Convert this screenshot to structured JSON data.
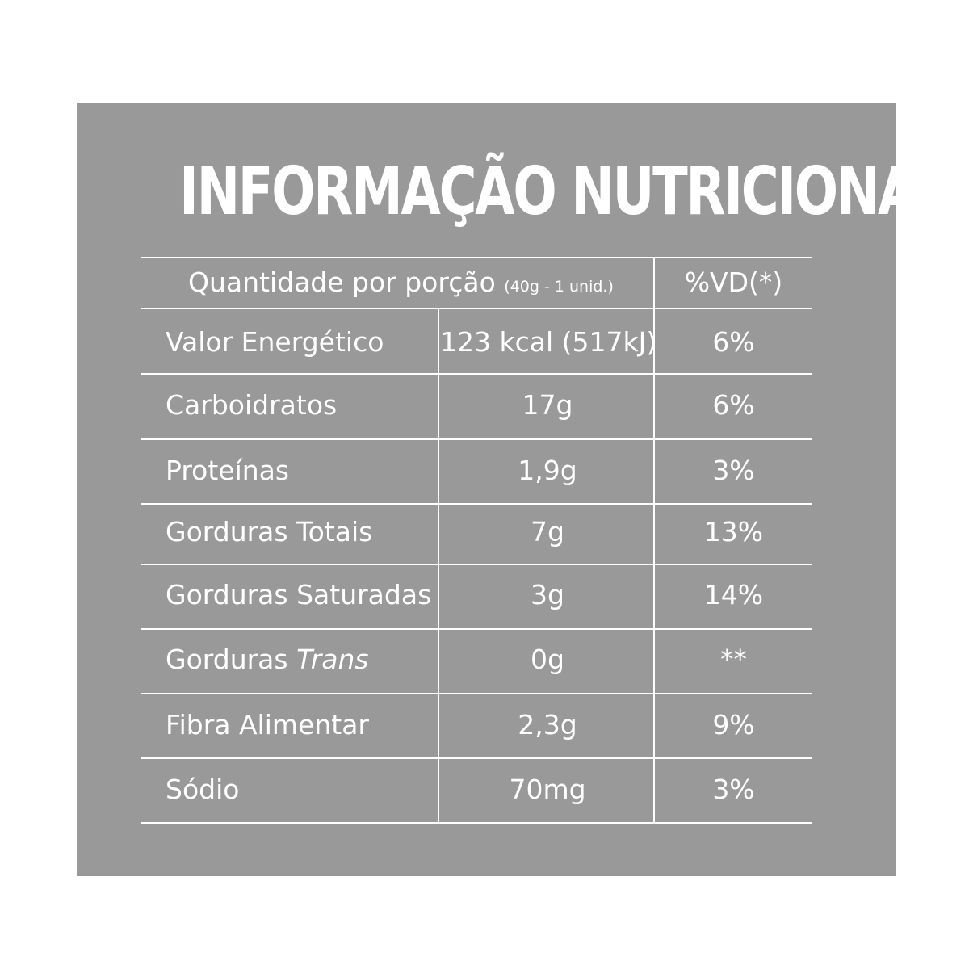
{
  "title": "INFORMAÇÃO NUTRICIONAL",
  "header": {
    "portion_label": "Quantidade por porção",
    "portion_detail": "(40g - 1 unid.)",
    "vd_label": "%VD(*)"
  },
  "rows": [
    {
      "name": "Valor Energético",
      "value": "123 kcal (517kJ)",
      "vd": "6%"
    },
    {
      "name": "Carboidratos",
      "value": "17g",
      "vd": "6%"
    },
    {
      "name": "Proteínas",
      "value": "1,9g",
      "vd": "3%"
    },
    {
      "name": "Gorduras Totais",
      "value": "7g",
      "vd": "13%"
    },
    {
      "name": "Gorduras Saturadas",
      "value": "3g",
      "vd": "14%"
    },
    {
      "name_prefix": "Gorduras ",
      "name_italic": "Trans",
      "value": "0g",
      "vd": "**"
    },
    {
      "name": "Fibra Alimentar",
      "value": "2,3g",
      "vd": "9%"
    },
    {
      "name": "Sódio",
      "value": "70mg",
      "vd": "3%"
    }
  ]
}
